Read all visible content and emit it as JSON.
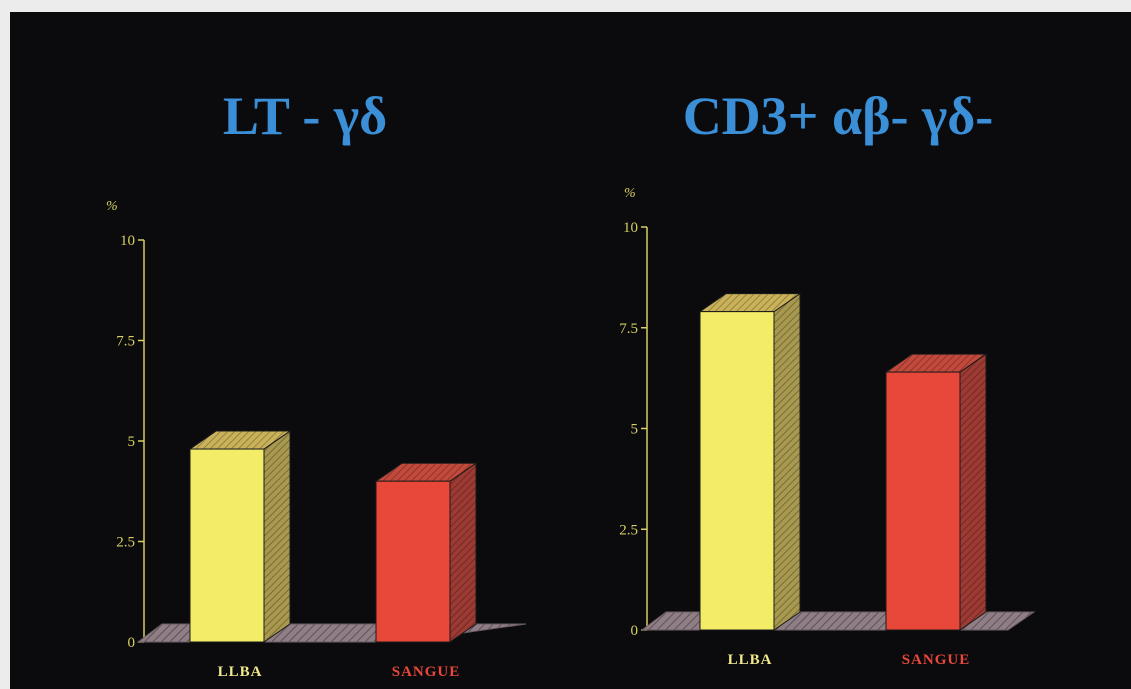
{
  "colors": {
    "background": "#0b0b0d",
    "title": "#3a8fd6",
    "axis": "#d7cf62",
    "floor": "#8f7e86",
    "llba_front": "#f3ec66",
    "llba_side": "#a8994f",
    "llba_top": "#c9b25a",
    "sangue_front": "#e8483a",
    "sangue_side": "#9c3a33",
    "sangue_top": "#c24a3c",
    "label_llba": "#f0ea8c",
    "label_sangue": "#e8483a"
  },
  "chart_data": [
    {
      "type": "bar",
      "title": "LT - γδ",
      "ylabel": "%",
      "ylim": [
        0,
        10
      ],
      "yticks": [
        "0",
        "2.5",
        "5",
        "7.5",
        "10"
      ],
      "categories": [
        "LLBA",
        "SANGUE"
      ],
      "values": [
        4.8,
        4.0
      ],
      "grid": false,
      "legend": "none"
    },
    {
      "type": "bar",
      "title": "CD3+ αβ- γδ-",
      "ylabel": "%",
      "ylim": [
        0,
        10
      ],
      "yticks": [
        "0",
        "2.5",
        "5",
        "7.5",
        "10"
      ],
      "categories": [
        "LLBA",
        "SANGUE"
      ],
      "values": [
        7.9,
        6.4
      ],
      "grid": false,
      "legend": "none"
    }
  ]
}
